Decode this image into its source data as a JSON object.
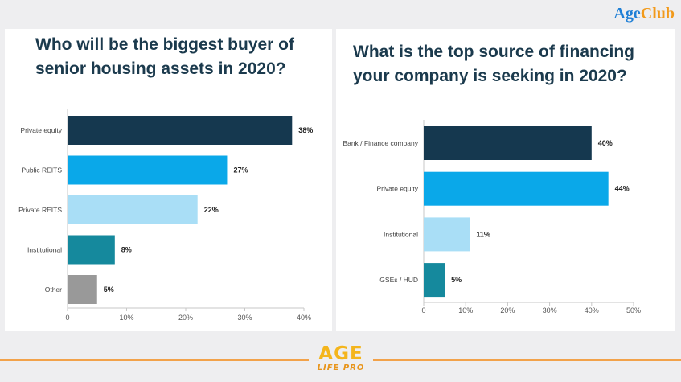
{
  "brand": {
    "part1": "Age",
    "part2": "Club"
  },
  "footer_logo": {
    "line1": "AGE",
    "line2": "LIFE PRO"
  },
  "chart_data": [
    {
      "type": "bar",
      "orientation": "horizontal",
      "title": "Who will be the biggest buyer of senior housing assets in 2020?",
      "categories": [
        "Private equity",
        "Public REITS",
        "Private REITS",
        "Institutional",
        "Other"
      ],
      "values": [
        38,
        27,
        22,
        8,
        5
      ],
      "value_labels": [
        "38%",
        "27%",
        "22%",
        "8%",
        "5%"
      ],
      "colors": [
        "#15384f",
        "#0aa8e9",
        "#a9def6",
        "#15899d",
        "#999999"
      ],
      "xlim": [
        0,
        40
      ],
      "xticks": [
        "0",
        "10%",
        "20%",
        "30%",
        "40%"
      ],
      "grid": false
    },
    {
      "type": "bar",
      "orientation": "horizontal",
      "title": "What is the top source of financing your company is seeking in 2020?",
      "categories": [
        "Bank / Finance company",
        "Private equity",
        "Institutional",
        "GSEs / HUD"
      ],
      "values": [
        40,
        44,
        11,
        5
      ],
      "value_labels": [
        "40%",
        "44%",
        "11%",
        "5%"
      ],
      "colors": [
        "#15384f",
        "#0aa8e9",
        "#a9def6",
        "#15899d"
      ],
      "xlim": [
        0,
        50
      ],
      "xticks": [
        "0",
        "10%",
        "20%",
        "30%",
        "40%",
        "50%"
      ],
      "grid": false
    }
  ]
}
